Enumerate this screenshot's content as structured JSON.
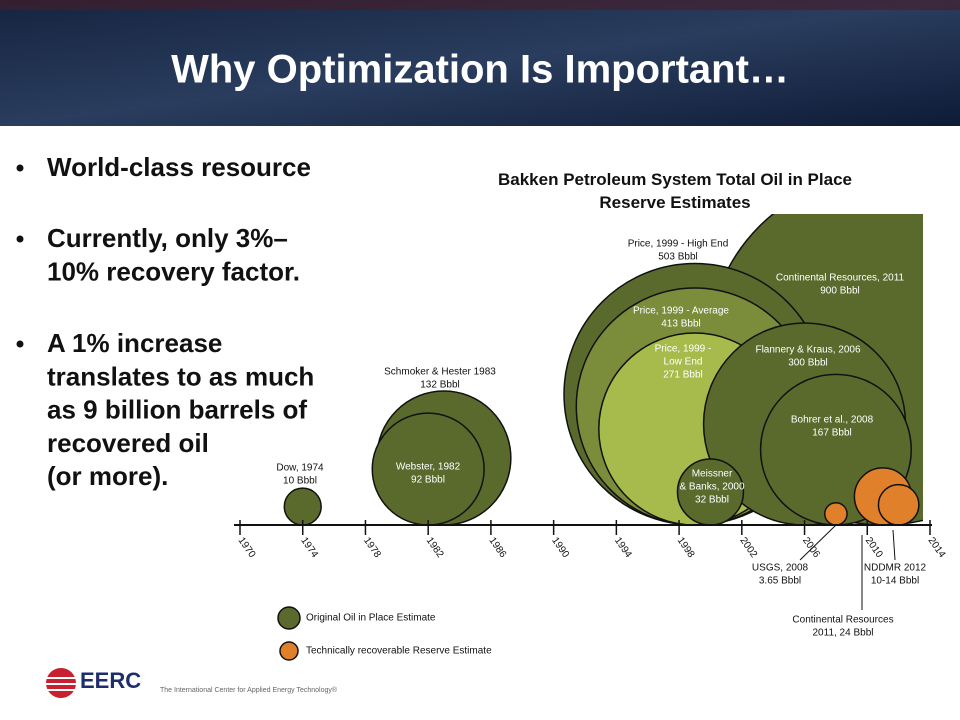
{
  "header": {
    "title": "Why Optimization Is Important…"
  },
  "bullets": [
    [
      "World-class resource"
    ],
    [
      "Currently, only 3%–",
      "10% recovery factor."
    ],
    [
      "A 1% increase",
      "translates to as much",
      "as 9 billion barrels of",
      "recovered oil",
      "(or more)."
    ]
  ],
  "chart_data": {
    "type": "bubble",
    "title": "Bakken Petroleum System Total Oil in Place Reserve Estimates",
    "xlim": [
      1970,
      2014
    ],
    "xticks": [
      1970,
      1974,
      1978,
      1982,
      1986,
      1990,
      1994,
      1998,
      2002,
      2006,
      2010,
      2014
    ],
    "series": [
      {
        "name": "Original Oil in Place Estimate",
        "color": "#5a6a2d",
        "labels": [
          [
            "Dow, 1974"
          ],
          [
            "Schmoker & Hester 1983"
          ],
          [
            "Webster, 1982"
          ],
          [
            "Continental Resources, 2011"
          ],
          [
            "Price, 1999 - High End"
          ],
          [
            "Price, 1999 - Average"
          ],
          [
            "Price, 1999 -",
            "Low End"
          ],
          [
            "Flannery & Kraus, 2006"
          ],
          [
            "Bohrer et al., 2008"
          ],
          [
            "Meissner",
            "& Banks, 2000"
          ]
        ],
        "x": [
          1974,
          1983,
          1982,
          2011,
          1999,
          1999,
          1999,
          2006,
          2008,
          2000
        ],
        "values": [
          10,
          132,
          92,
          900,
          503,
          413,
          271,
          300,
          167,
          32
        ],
        "value_labels": [
          "10 Bbbl",
          "132 Bbbl",
          "92 Bbbl",
          "900 Bbbl",
          "503 Bbbl",
          "413 Bbbl",
          "271 Bbbl",
          "300 Bbbl",
          "167 Bbbl",
          "32 Bbbl"
        ],
        "colors": [
          "#5a6a2d",
          "#5a6a2d",
          "#5a6a2d",
          "#5a6a2d",
          "#5a6a2d",
          "#7b8c3a",
          "#a7bb4c",
          "#5a6a2d",
          "#5a6a2d",
          "#5a6a2d"
        ]
      },
      {
        "name": "Technically recoverable Reserve Estimate",
        "color": "#e0802b",
        "labels": [
          [
            "USGS, 2008"
          ],
          [
            "Continental Resources",
            "2011, 24 Bbbl"
          ],
          [
            "NDDMR 2012"
          ]
        ],
        "x": [
          2008,
          2011,
          2012
        ],
        "values": [
          3.65,
          24,
          12
        ],
        "value_labels": [
          "3.65 Bbbl",
          null,
          "10-14 Bbbl"
        ],
        "colors": [
          "#e0802b",
          "#e0802b",
          "#e0802b"
        ]
      }
    ]
  },
  "footer": {
    "logo": "EERC",
    "tagline": "The International Center for Applied Energy Technology®"
  }
}
